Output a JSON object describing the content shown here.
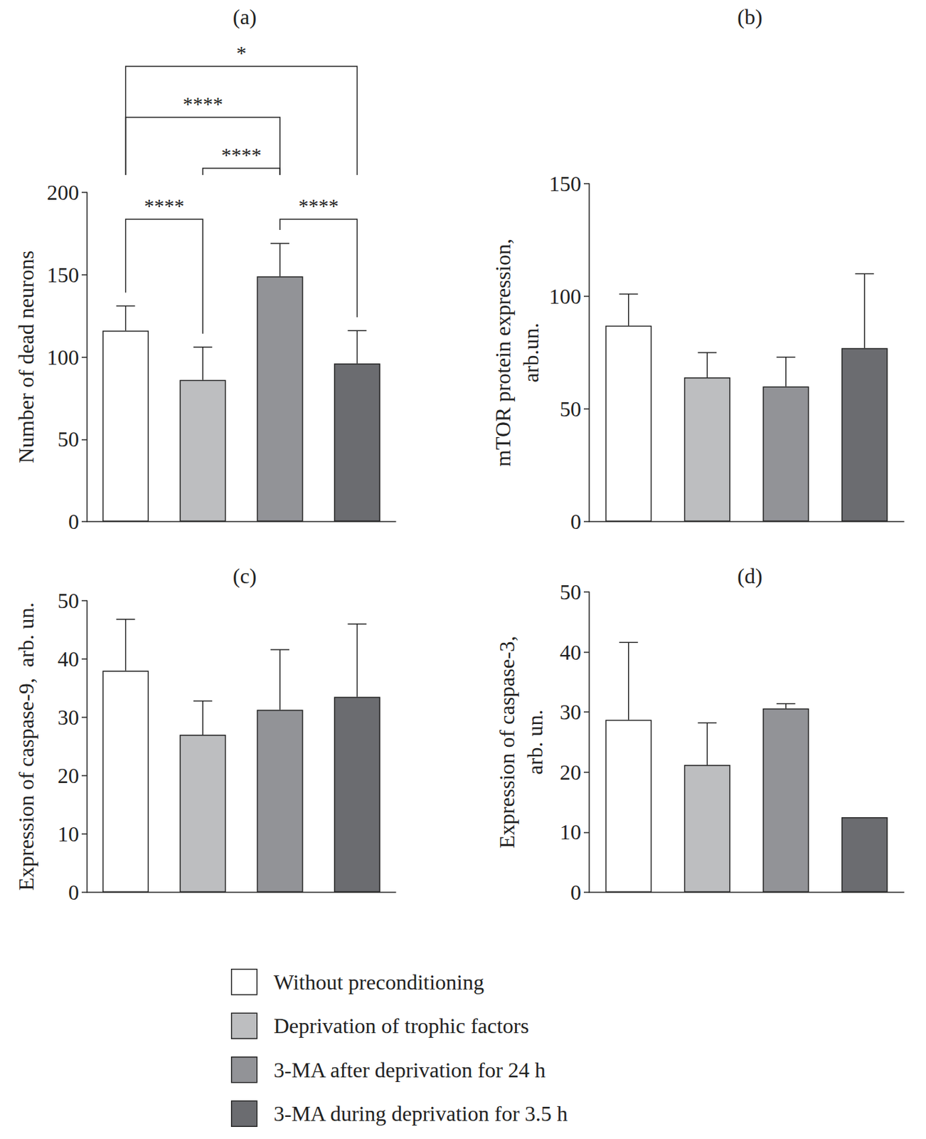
{
  "chart_data": [
    {
      "type": "bar",
      "title": "(a)",
      "y_label": "Number of dead neurons",
      "categories": [
        null,
        null,
        null,
        null
      ],
      "ylim": [
        0,
        200
      ],
      "yticks": [
        0,
        50,
        100,
        150,
        200
      ],
      "grid": false,
      "tick_labels": "y",
      "stacked": true,
      "series": [
        {
          "name": "Without preconditioning",
          "color": "#ffffff",
          "values": [
            116,
            null,
            null,
            null
          ],
          "errors": [
            15,
            null,
            null,
            null
          ]
        },
        {
          "name": "Deprivation of trophic factors",
          "color": "#bdbec0",
          "values": [
            null,
            86,
            null,
            null
          ],
          "errors": [
            null,
            20,
            null,
            null
          ]
        },
        {
          "name": "3-MA after deprivation for 24 h",
          "color": "#929397",
          "values": [
            null,
            null,
            149,
            null
          ],
          "errors": [
            null,
            null,
            20,
            null
          ]
        },
        {
          "name": "3-MA during deprivation for 3.5 h",
          "color": "#6b6c70",
          "values": [
            null,
            null,
            null,
            96
          ],
          "errors": [
            null,
            null,
            null,
            20
          ]
        }
      ],
      "annotations": [
        {
          "from": 0,
          "to": 1,
          "text": "****"
        },
        {
          "from": 2,
          "to": 3,
          "text": "****"
        },
        {
          "from": 1,
          "to": 2,
          "text": "****"
        },
        {
          "from": 0,
          "to": 2,
          "text": "****"
        },
        {
          "from": 0,
          "to": 3,
          "text": "*"
        }
      ]
    },
    {
      "type": "bar",
      "title": "(b)",
      "y_label": "mTOR protein expression,\narb.un.",
      "categories": [
        null,
        null,
        null,
        null
      ],
      "ylim": [
        0,
        150
      ],
      "yticks": [
        0,
        50,
        100,
        150
      ],
      "grid": false,
      "tick_labels": "y",
      "stacked": true,
      "series": [
        {
          "name": "Without preconditioning",
          "color": "#ffffff",
          "values": [
            87,
            null,
            null,
            null
          ],
          "errors": [
            14,
            null,
            null,
            null
          ]
        },
        {
          "name": "Deprivation of trophic factors",
          "color": "#bdbec0",
          "values": [
            null,
            64,
            null,
            null
          ],
          "errors": [
            null,
            11,
            null,
            null
          ]
        },
        {
          "name": "3-MA after deprivation for 24 h",
          "color": "#929397",
          "values": [
            null,
            null,
            60,
            null
          ],
          "errors": [
            null,
            null,
            13,
            null
          ]
        },
        {
          "name": "3-MA during deprivation for 3.5 h",
          "color": "#6b6c70",
          "values": [
            null,
            null,
            null,
            77
          ],
          "errors": [
            null,
            null,
            null,
            33
          ]
        }
      ]
    },
    {
      "type": "bar",
      "title": "(c)",
      "y_label": "Expression of caspase-9,  arb. un.",
      "categories": [
        null,
        null,
        null,
        null
      ],
      "ylim": [
        0,
        50
      ],
      "yticks": [
        0,
        10,
        20,
        30,
        40,
        50
      ],
      "grid": false,
      "tick_labels": "y",
      "stacked": true,
      "series": [
        {
          "name": "Without preconditioning",
          "color": "#ffffff",
          "values": [
            38,
            null,
            null,
            null
          ],
          "errors": [
            8.8,
            null,
            null,
            null
          ]
        },
        {
          "name": "Deprivation of trophic factors",
          "color": "#bdbec0",
          "values": [
            null,
            27,
            null,
            null
          ],
          "errors": [
            null,
            5.8,
            null,
            null
          ]
        },
        {
          "name": "3-MA after deprivation for 24 h",
          "color": "#929397",
          "values": [
            null,
            null,
            31.3,
            null
          ],
          "errors": [
            null,
            null,
            10.3,
            null
          ]
        },
        {
          "name": "3-MA during deprivation for 3.5 h",
          "color": "#6b6c70",
          "values": [
            null,
            null,
            null,
            33.5
          ],
          "errors": [
            null,
            null,
            null,
            12.5
          ]
        }
      ]
    },
    {
      "type": "bar",
      "title": "(d)",
      "y_label": "Expression of caspase-3,\narb. un.",
      "categories": [
        null,
        null,
        null,
        null
      ],
      "ylim": [
        0,
        50
      ],
      "yticks": [
        0,
        10,
        20,
        30,
        40,
        50
      ],
      "grid": false,
      "tick_labels": "y",
      "stacked": true,
      "series": [
        {
          "name": "Without preconditioning",
          "color": "#ffffff",
          "values": [
            28.7,
            null,
            null,
            null
          ],
          "errors": [
            12.9,
            null,
            null,
            null
          ]
        },
        {
          "name": "Deprivation of trophic factors",
          "color": "#bdbec0",
          "values": [
            null,
            21.2,
            null,
            null
          ],
          "errors": [
            null,
            7,
            null,
            null
          ]
        },
        {
          "name": "3-MA after deprivation for 24 h",
          "color": "#929397",
          "values": [
            null,
            null,
            30.6,
            null
          ],
          "errors": [
            null,
            null,
            0.8,
            null
          ]
        },
        {
          "name": "3-MA during deprivation for 3.5 h",
          "color": "#6b6c70",
          "values": [
            null,
            null,
            null,
            12.5
          ],
          "errors": [
            null,
            null,
            null,
            null
          ]
        }
      ]
    }
  ]
}
